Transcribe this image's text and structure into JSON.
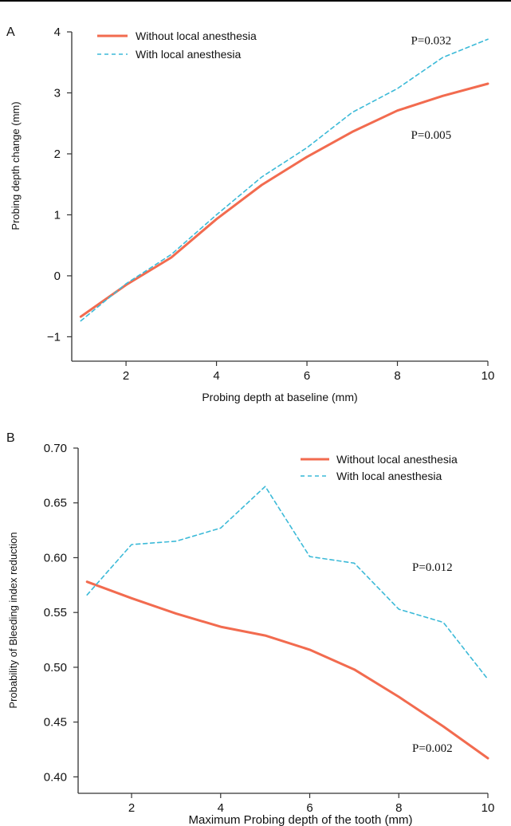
{
  "chart_data": [
    {
      "panel_label": "A",
      "type": "line",
      "title": "",
      "xlabel": "Probing depth at baseline (mm)",
      "ylabel": "Probing depth change (mm)",
      "xlim": [
        0.8,
        10
      ],
      "ylim": [
        -1.4,
        4
      ],
      "x_ticks": [
        2,
        4,
        6,
        8,
        10
      ],
      "y_ticks": [
        -1,
        0,
        1,
        2,
        3,
        4
      ],
      "y_tick_labels": [
        "−1",
        "0",
        "1",
        "2",
        "3",
        "4"
      ],
      "grid": false,
      "legend_position": "top-left",
      "series": [
        {
          "name": "Without local anesthesia",
          "color": "#f26b4f",
          "style": "solid",
          "x": [
            1,
            2,
            3,
            4,
            5,
            6,
            7,
            8,
            9,
            10
          ],
          "y": [
            -0.67,
            -0.15,
            0.3,
            0.93,
            1.49,
            1.95,
            2.36,
            2.71,
            2.95,
            3.15
          ]
        },
        {
          "name": "With local anesthesia",
          "color": "#3cbad8",
          "style": "dashed",
          "x": [
            1,
            2,
            3,
            4,
            5,
            6,
            7,
            8,
            9,
            10
          ],
          "y": [
            -0.74,
            -0.13,
            0.35,
            1.0,
            1.62,
            2.1,
            2.68,
            3.07,
            3.58,
            3.88
          ]
        }
      ],
      "annotations": [
        {
          "text": "P=0.032",
          "x": 8.3,
          "y": 3.8
        },
        {
          "text": "P=0.005",
          "x": 8.3,
          "y": 2.25
        }
      ]
    },
    {
      "panel_label": "B",
      "type": "line",
      "title": "",
      "xlabel": "Maximum Probing depth of the tooth (mm)",
      "ylabel": "Probability of Bleeding index reduction",
      "xlim": [
        0.8,
        10
      ],
      "ylim": [
        0.385,
        0.7
      ],
      "x_ticks": [
        2,
        4,
        6,
        8,
        10
      ],
      "y_ticks": [
        0.4,
        0.45,
        0.5,
        0.55,
        0.6,
        0.65,
        0.7
      ],
      "y_tick_labels": [
        "0.40",
        "0.45",
        "0.50",
        "0.55",
        "0.60",
        "0.65",
        "0.70"
      ],
      "grid": false,
      "legend_position": "top-right",
      "series": [
        {
          "name": "Without local anesthesia",
          "color": "#f26b4f",
          "style": "solid",
          "x": [
            1,
            2,
            3,
            4,
            5,
            6,
            7,
            8,
            9,
            10
          ],
          "y": [
            0.578,
            0.563,
            0.549,
            0.537,
            0.529,
            0.516,
            0.498,
            0.473,
            0.446,
            0.417
          ]
        },
        {
          "name": "With local anesthesia",
          "color": "#3cbad8",
          "style": "dashed",
          "x": [
            1,
            2,
            3,
            4,
            5,
            6,
            7,
            8,
            9,
            10
          ],
          "y": [
            0.566,
            0.612,
            0.615,
            0.627,
            0.665,
            0.601,
            0.595,
            0.553,
            0.541,
            0.489
          ]
        }
      ],
      "annotations": [
        {
          "text": "P=0.012",
          "x": 8.3,
          "y": 0.588
        },
        {
          "text": "P=0.002",
          "x": 8.3,
          "y": 0.423
        }
      ]
    }
  ]
}
